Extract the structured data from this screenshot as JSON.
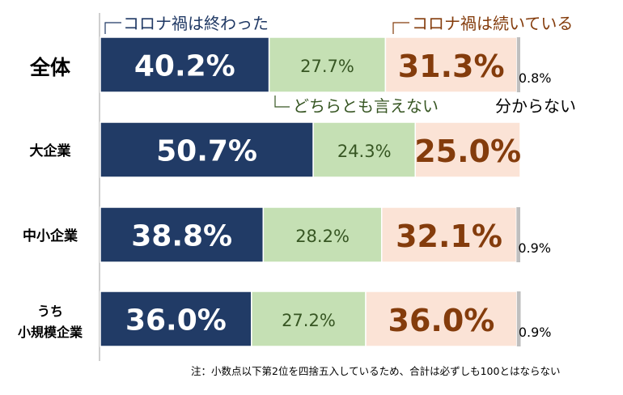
{
  "chart_data": {
    "type": "bar",
    "orientation": "horizontal",
    "stacked": true,
    "percent": true,
    "categories": [
      "全体",
      "大企業",
      "中小企業",
      "うち\n小規模企業"
    ],
    "series": [
      {
        "name": "コロナ禍は終わった",
        "values": [
          40.2,
          50.7,
          38.8,
          36.0
        ],
        "labels": [
          "40.2%",
          "50.7%",
          "38.8%",
          "36.0%"
        ]
      },
      {
        "name": "どちらとも言えない",
        "values": [
          27.7,
          24.3,
          28.2,
          27.2
        ],
        "labels": [
          "27.7%",
          "24.3%",
          "28.2%",
          "27.2%"
        ]
      },
      {
        "name": "コロナ禍は続いている",
        "values": [
          31.3,
          25.0,
          32.1,
          36.0
        ],
        "labels": [
          "31.3%",
          "25.0%",
          "32.1%",
          "36.0%"
        ]
      },
      {
        "name": "分からない",
        "values": [
          0.8,
          0.0,
          0.9,
          0.9
        ],
        "labels": [
          "0.8%",
          "",
          "0.9%",
          "0.9%"
        ]
      }
    ],
    "xlim": [
      0,
      100
    ],
    "legend_placement": "inline-callouts"
  },
  "colors": {
    "ended": "#213b66",
    "neutral": "#c5e0b4",
    "continuing": "#fbe3d6",
    "unknown": "#bfbfbf",
    "ended_text": "#ffffff",
    "neutral_text": "#375623",
    "continuing_text": "#843c0c",
    "legend_ended_text": "#1f3864",
    "legend_neutral_text": "#375623",
    "legend_continuing_text": "#843c0c",
    "unknown_text": "#000000"
  },
  "note": "注：小数点以下第2位を四捨五入しているため、合計は必ずしも100とはならない"
}
